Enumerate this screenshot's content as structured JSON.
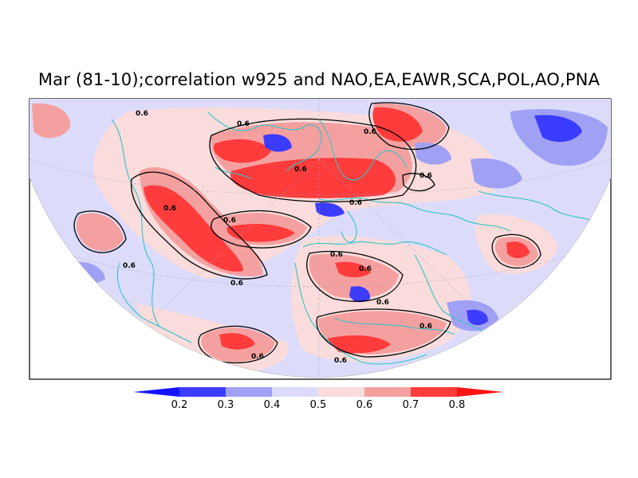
{
  "title": "Mar (81-10);correlation w925 and NAO,EA,EAWR,SCA,POL,AO,PNA",
  "contour_label": "0.6",
  "legend": {
    "ticks": [
      "0.2",
      "0.3",
      "0.4",
      "0.5",
      "0.6",
      "0.7",
      "0.8"
    ],
    "bins": [
      {
        "color": "#1414ff"
      },
      {
        "color": "#3c3cff"
      },
      {
        "color": "#a0a0f5"
      },
      {
        "color": "#dcdcfa"
      },
      {
        "color": "#fadcdc"
      },
      {
        "color": "#f5a0a0"
      },
      {
        "color": "#ff3c3c"
      },
      {
        "color": "#ff1414"
      }
    ]
  },
  "colors": {
    "coastline": "#2ec4c4",
    "contour": "#000000",
    "background": "#dcdcfa"
  }
}
